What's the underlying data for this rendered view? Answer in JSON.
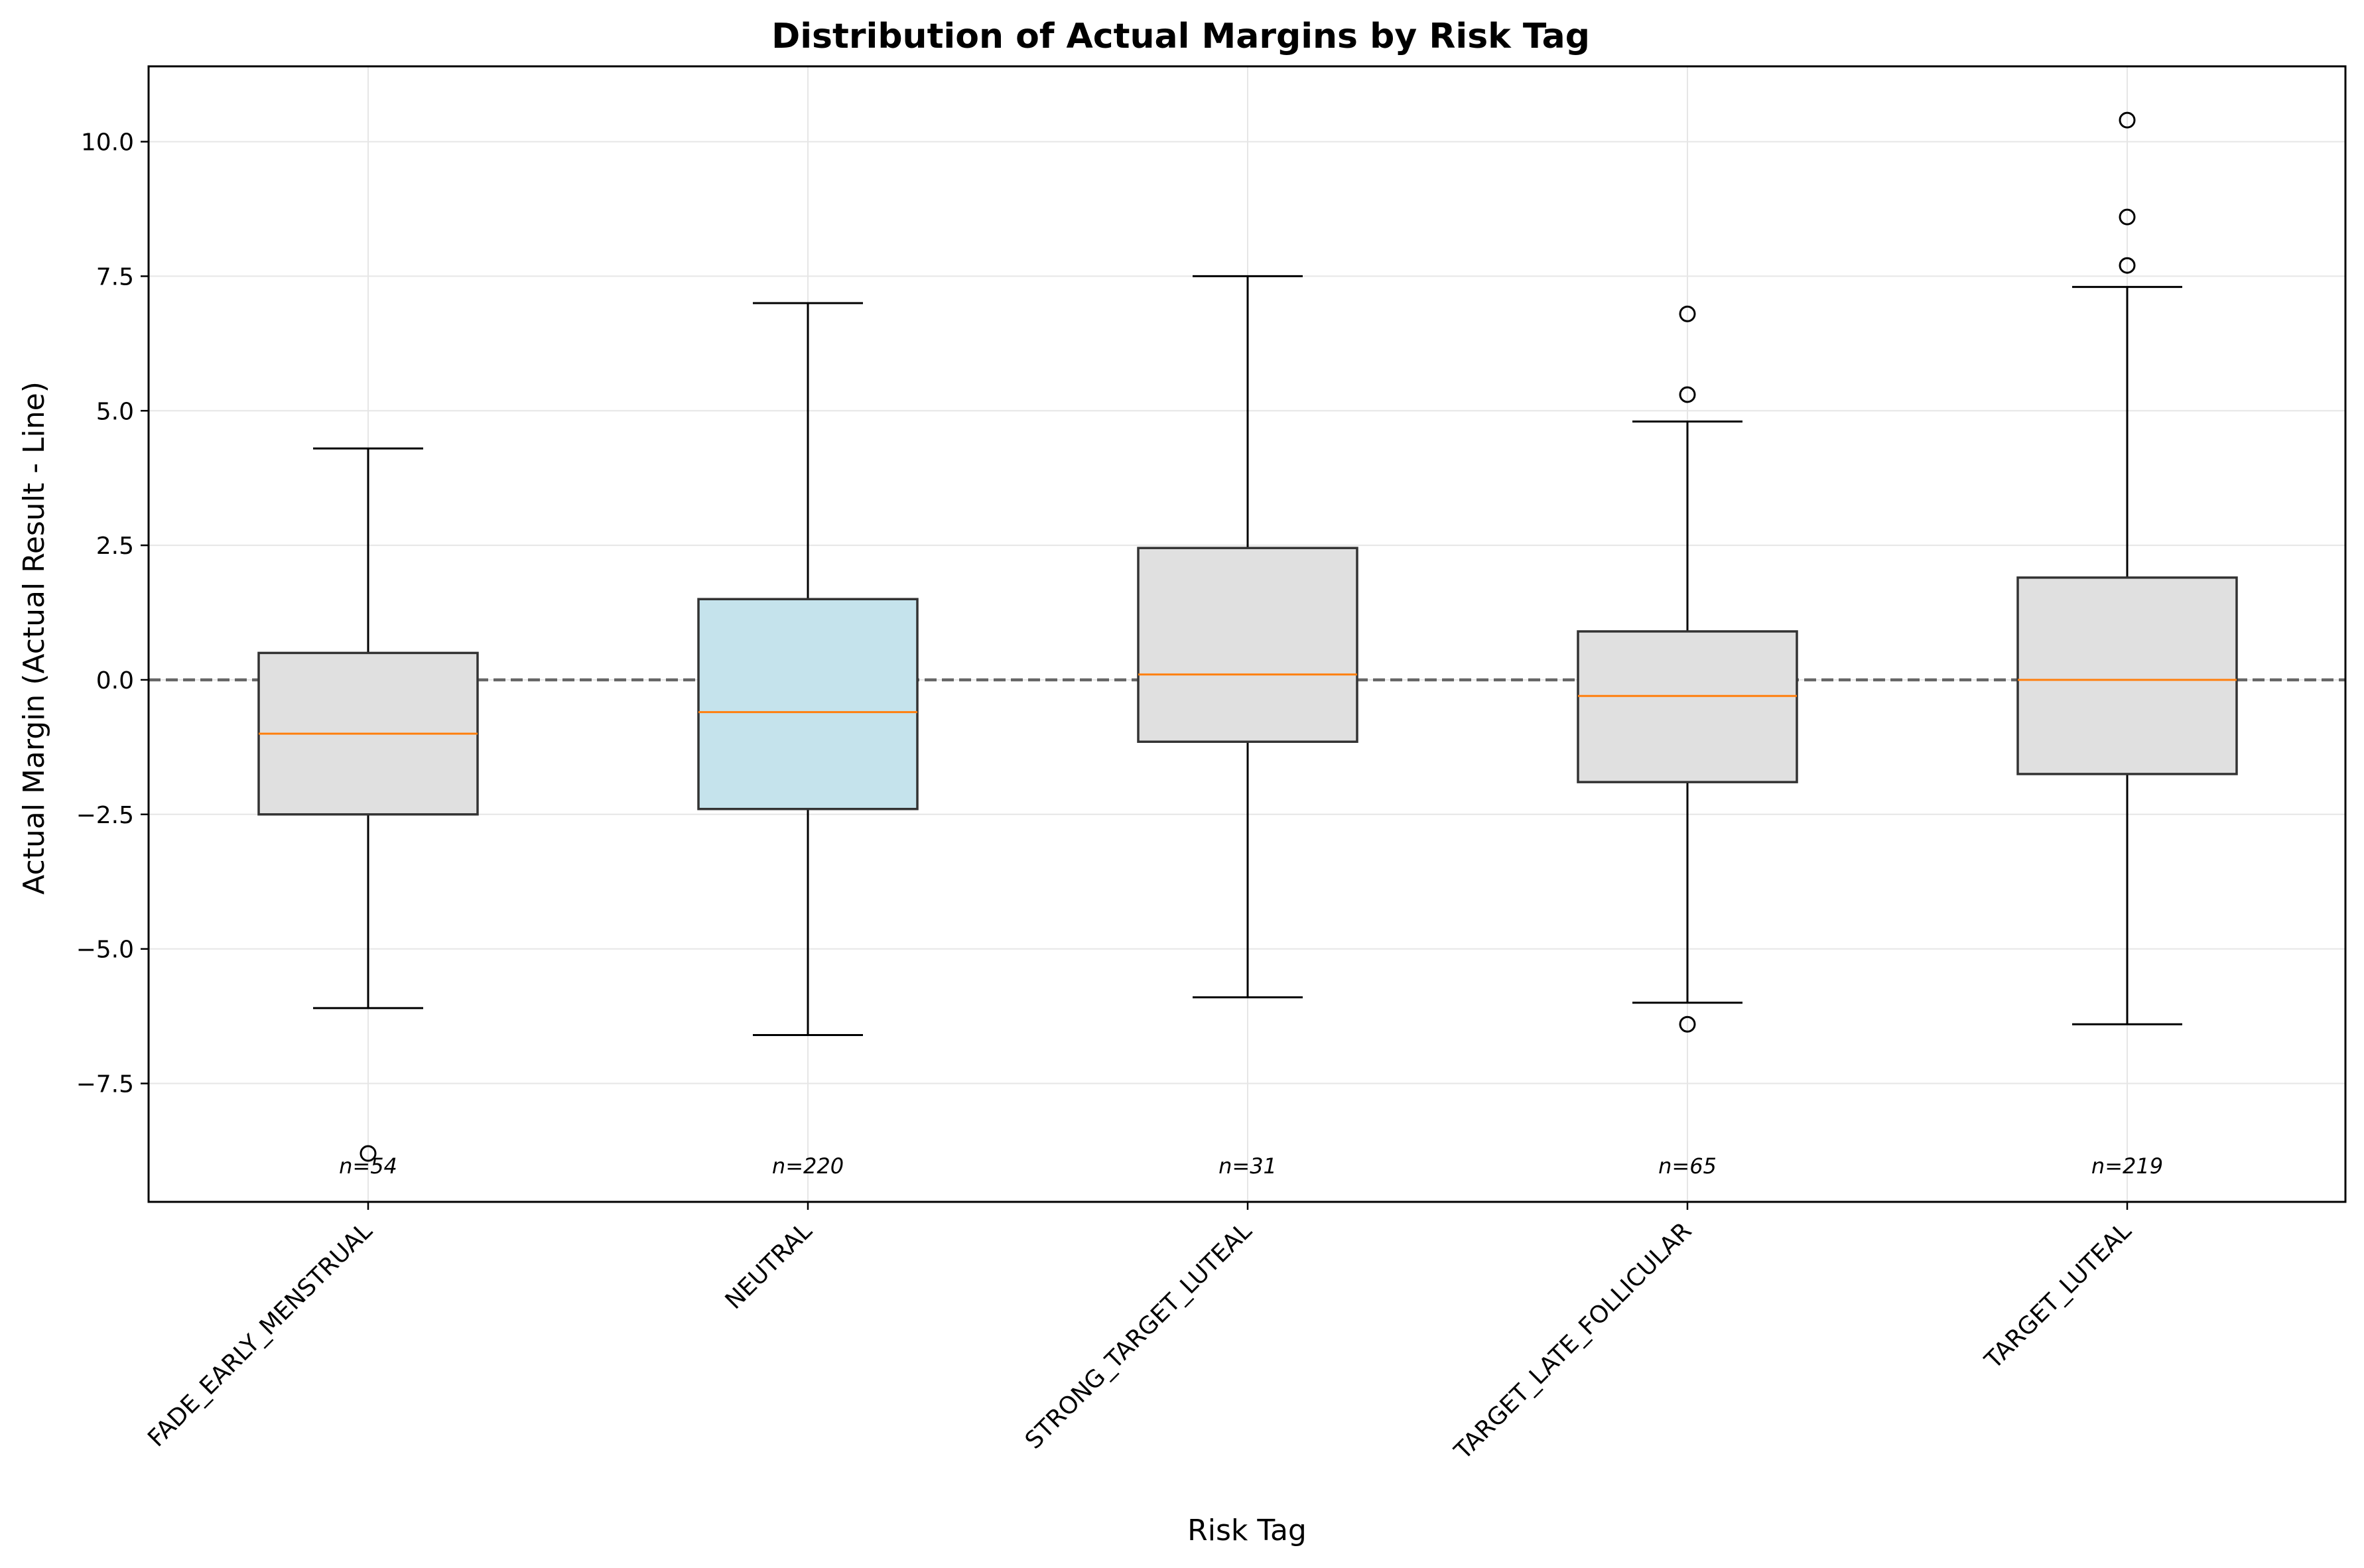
{
  "chart_data": {
    "type": "box",
    "title": "Distribution of Actual Margins by Risk Tag",
    "xlabel": "Risk Tag",
    "ylabel": "Actual Margin (Actual Result - Line)",
    "ylim": [
      -9.7,
      11.4
    ],
    "yticks": [
      -7.5,
      -5.0,
      -2.5,
      0.0,
      2.5,
      5.0,
      7.5,
      10.0
    ],
    "ytick_labels": [
      "−7.5",
      "−5.0",
      "−2.5",
      "0.0",
      "2.5",
      "5.0",
      "7.5",
      "10.0"
    ],
    "grid": true,
    "reference_line": 0.0,
    "categories": [
      "FADE_EARLY_MENSTRUAL",
      "NEUTRAL",
      "STRONG_TARGET_LUTEAL",
      "TARGET_LATE_FOLLICULAR",
      "TARGET_LUTEAL"
    ],
    "boxes": [
      {
        "whisker_low": -6.1,
        "q1": -2.5,
        "median": -1.0,
        "q3": 0.5,
        "whisker_high": 4.3,
        "outliers": [
          -8.8
        ],
        "count_label": "n=54",
        "color": "#e0e0e0"
      },
      {
        "whisker_low": -6.6,
        "q1": -2.4,
        "median": -0.6,
        "q3": 1.5,
        "whisker_high": 7.0,
        "outliers": [],
        "count_label": "n=220",
        "color": "#c5e3ec"
      },
      {
        "whisker_low": -5.9,
        "q1": -1.15,
        "median": 0.1,
        "q3": 2.45,
        "whisker_high": 7.5,
        "outliers": [],
        "count_label": "n=31",
        "color": "#e0e0e0"
      },
      {
        "whisker_low": -6.0,
        "q1": -1.9,
        "median": -0.3,
        "q3": 0.9,
        "whisker_high": 4.8,
        "outliers": [
          5.3,
          6.8,
          -6.4
        ],
        "count_label": "n=65",
        "color": "#e0e0e0"
      },
      {
        "whisker_low": -6.4,
        "q1": -1.75,
        "median": 0.0,
        "q3": 1.9,
        "whisker_high": 7.3,
        "outliers": [
          7.7,
          8.6,
          10.4
        ],
        "count_label": "n=219",
        "color": "#e0e0e0"
      }
    ],
    "colors": {
      "median": "#ff7f0e",
      "box_edge": "#333333",
      "reference": "#666666",
      "grid": "#e6e6e6"
    }
  }
}
